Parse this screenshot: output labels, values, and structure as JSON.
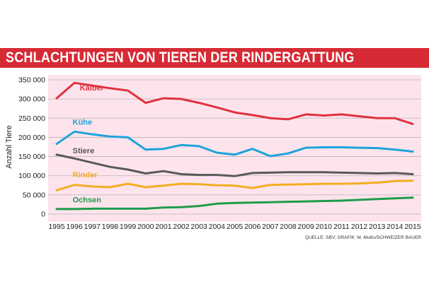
{
  "title": "SCHLACHTUNGEN VON TIEREN DER RINDERGATTUNG",
  "source": "QUELLE: SBV; GRAFIK: M. Mullis/SCHWEIZER BAUER",
  "chart_data": {
    "type": "line",
    "title": "SCHLACHTUNGEN VON TIEREN DER RINDERGATTUNG",
    "xlabel": "",
    "ylabel": "Anzahl Tiere",
    "ylim": [
      0,
      350000
    ],
    "grid": true,
    "x": [
      1995,
      1996,
      1997,
      1998,
      1999,
      2000,
      2001,
      2002,
      2003,
      2004,
      2005,
      2006,
      2007,
      2008,
      2009,
      2010,
      2011,
      2012,
      2013,
      2014,
      2015
    ],
    "x_tick_labels": [
      "1995",
      "1996",
      "1997",
      "1998",
      "1999",
      "2000",
      "2001",
      "2002",
      "2003",
      "2004",
      "2005",
      "2006",
      "2007",
      "2008",
      "2009",
      "2010",
      "2011",
      "2012",
      "2013",
      "2014",
      "2015"
    ],
    "y_ticks": [
      0,
      50000,
      100000,
      150000,
      200000,
      250000,
      300000,
      350000
    ],
    "y_tick_labels": [
      "0",
      "50 000",
      "100 000",
      "150 000",
      "200 000",
      "250 000",
      "300 000",
      "350 000"
    ],
    "series": [
      {
        "name": "Kälber",
        "color": "#e0323e",
        "values": [
          302000,
          342000,
          335000,
          328000,
          322000,
          290000,
          302000,
          300000,
          290000,
          278000,
          265000,
          258000,
          250000,
          247000,
          260000,
          257000,
          260000,
          255000,
          250000,
          250000,
          235000
        ]
      },
      {
        "name": "Kühe",
        "color": "#1ca3dc",
        "values": [
          183000,
          215000,
          208000,
          202000,
          200000,
          168000,
          170000,
          180000,
          177000,
          160000,
          155000,
          170000,
          151000,
          158000,
          173000,
          174000,
          174000,
          173000,
          172000,
          168000,
          163000
        ]
      },
      {
        "name": "Stiere",
        "color": "#58595b",
        "values": [
          155000,
          145000,
          134000,
          123000,
          116000,
          106000,
          112000,
          104000,
          102000,
          102000,
          99000,
          107000,
          108000,
          109000,
          109000,
          109000,
          108000,
          107000,
          106000,
          107000,
          104000
        ]
      },
      {
        "name": "Rinder",
        "color": "#f3ae22",
        "values": [
          62000,
          76000,
          72000,
          70000,
          79000,
          70000,
          74000,
          79000,
          78000,
          75000,
          74000,
          68000,
          76000,
          77000,
          78000,
          79000,
          79000,
          80000,
          82000,
          86000,
          87000
        ]
      },
      {
        "name": "Ochsen",
        "color": "#1e9c49",
        "values": [
          13000,
          13000,
          14000,
          14000,
          14000,
          14000,
          17000,
          18000,
          21000,
          27000,
          29000,
          30000,
          31000,
          32000,
          33000,
          34000,
          35000,
          37000,
          39000,
          41000,
          43000
        ]
      }
    ],
    "annotations": [
      {
        "series": "Kälber",
        "text": "Kälber",
        "at_x": 1996.3,
        "at_y": 322000
      },
      {
        "series": "Kühe",
        "text": "Kühe",
        "at_x": 1995.9,
        "at_y": 233000
      },
      {
        "series": "Stiere",
        "text": "Stiere",
        "at_x": 1995.9,
        "at_y": 158000
      },
      {
        "series": "Rinder",
        "text": "Rinder",
        "at_x": 1995.9,
        "at_y": 96000
      },
      {
        "series": "Ochsen",
        "text": "Ochsen",
        "at_x": 1995.9,
        "at_y": 30000
      }
    ]
  }
}
